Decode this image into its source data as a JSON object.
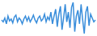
{
  "chart_data": {
    "type": "line",
    "color": "#3a8edb",
    "tick_labels": false,
    "grid": false,
    "values": [
      22,
      20,
      24,
      18,
      26,
      21,
      23,
      19,
      25,
      27,
      20,
      24,
      22,
      18,
      23,
      26,
      21,
      25,
      20,
      23,
      27,
      22,
      19,
      24,
      26,
      21,
      23,
      28,
      20,
      25,
      22,
      30,
      18,
      26,
      33,
      15,
      28,
      36,
      12,
      24,
      38,
      20,
      30,
      14,
      35,
      40,
      10,
      26,
      32,
      18,
      38,
      22,
      8,
      30,
      36,
      16,
      28,
      24,
      20,
      22
    ]
  }
}
